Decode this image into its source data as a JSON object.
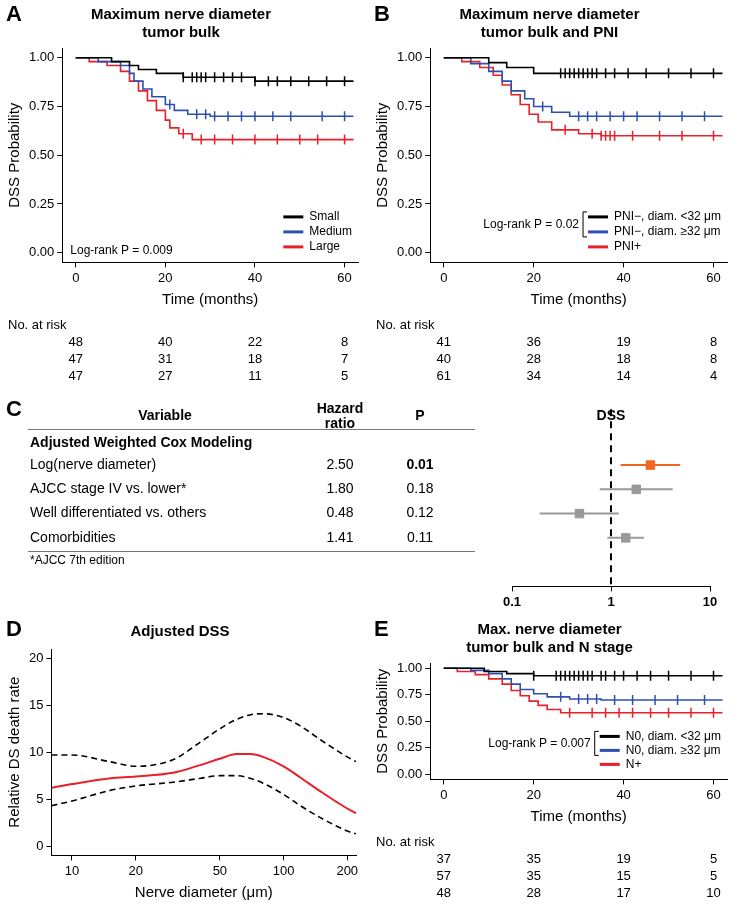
{
  "chart_data": [
    {
      "type": "step",
      "panel": "A",
      "title": [
        "Maximum nerve diameter",
        "tumor bulk"
      ],
      "xlabel": "Time (months)",
      "ylabel": "DSS Probability",
      "xlim": [
        -3,
        63
      ],
      "xticks": [
        0,
        20,
        40,
        60
      ],
      "ylim": [
        -0.05,
        1.05
      ],
      "yticks": [
        {
          "value": 0,
          "label": "0.00"
        },
        {
          "value": 0.25,
          "label": "0.25"
        },
        {
          "value": 0.5,
          "label": "0.50"
        },
        {
          "value": 0.75,
          "label": "0.75"
        },
        {
          "value": 1,
          "label": "1.00"
        }
      ],
      "grid": false,
      "legend": "lower right",
      "annotation": "Log-rank P = 0.009",
      "series": [
        {
          "name": "Small",
          "color": "#000000",
          "x": [
            0,
            8,
            12,
            14,
            18,
            24,
            40,
            62
          ],
          "values": [
            1,
            0.98,
            0.96,
            0.94,
            0.92,
            0.9,
            0.88,
            0.88
          ],
          "censored": [
            24,
            26,
            27,
            28,
            29,
            31,
            33,
            35,
            37,
            40,
            43,
            45,
            48,
            52,
            56,
            60
          ]
        },
        {
          "name": "Medium",
          "color": "#2f4fb0",
          "x": [
            0,
            5,
            10,
            12,
            13,
            15,
            17,
            20,
            22,
            25,
            30,
            62
          ],
          "values": [
            1,
            0.98,
            0.96,
            0.92,
            0.88,
            0.84,
            0.8,
            0.76,
            0.73,
            0.71,
            0.7,
            0.7
          ],
          "censored": [
            21,
            27,
            29,
            31,
            34,
            37,
            40,
            44,
            48,
            55,
            60
          ]
        },
        {
          "name": "Large",
          "color": "#e8202a",
          "x": [
            0,
            3,
            7,
            10,
            12,
            14,
            16,
            18,
            20,
            21,
            23,
            26,
            62
          ],
          "values": [
            1,
            0.98,
            0.96,
            0.93,
            0.88,
            0.83,
            0.78,
            0.73,
            0.68,
            0.64,
            0.61,
            0.58,
            0.58
          ],
          "censored": [
            24,
            28,
            31,
            35,
            40,
            45,
            50,
            54,
            60
          ]
        }
      ],
      "risk_table": {
        "title": "No. at risk",
        "times": [
          0,
          20,
          40,
          60
        ],
        "rows": [
          [
            48,
            40,
            22,
            8
          ],
          [
            47,
            31,
            18,
            7
          ],
          [
            47,
            27,
            11,
            5
          ]
        ]
      }
    },
    {
      "type": "step",
      "panel": "B",
      "title": [
        "Maximum nerve diameter",
        "tumor bulk and PNI"
      ],
      "xlabel": "Time (months)",
      "ylabel": "DSS Probability",
      "xlim": [
        -3,
        63
      ],
      "xticks": [
        0,
        20,
        40,
        60
      ],
      "ylim": [
        -0.05,
        1.05
      ],
      "yticks": [
        {
          "value": 0,
          "label": "0.00"
        },
        {
          "value": 0.25,
          "label": "0.25"
        },
        {
          "value": 0.5,
          "label": "0.50"
        },
        {
          "value": 0.75,
          "label": "0.75"
        },
        {
          "value": 1,
          "label": "1.00"
        }
      ],
      "grid": false,
      "legend": "lower right",
      "annotation": "Log-rank P = 0.02",
      "series": [
        {
          "name": "PNI−, diam. <32 μm",
          "color": "#000000",
          "x": [
            0,
            10,
            14,
            20,
            62
          ],
          "values": [
            1,
            0.975,
            0.95,
            0.92,
            0.92
          ],
          "censored": [
            26,
            27,
            28,
            29,
            30,
            31,
            32,
            33,
            34,
            36,
            38,
            41,
            45,
            50,
            55,
            60
          ]
        },
        {
          "name": "PNI−, diam. ≥32 μm",
          "color": "#2f4fb0",
          "x": [
            0,
            6,
            10,
            13,
            15,
            18,
            20,
            24,
            28,
            62
          ],
          "values": [
            1,
            0.97,
            0.93,
            0.88,
            0.83,
            0.79,
            0.75,
            0.72,
            0.7,
            0.7
          ],
          "censored": [
            22,
            30,
            32,
            34,
            37,
            40,
            43,
            48,
            53,
            58
          ]
        },
        {
          "name": "PNI+",
          "color": "#e8202a",
          "x": [
            0,
            4,
            8,
            11,
            13,
            15,
            17,
            19,
            21,
            24,
            30,
            35,
            62
          ],
          "values": [
            1,
            0.98,
            0.95,
            0.91,
            0.86,
            0.81,
            0.76,
            0.71,
            0.67,
            0.63,
            0.61,
            0.6,
            0.6
          ],
          "censored": [
            27,
            33,
            35,
            36,
            37,
            38,
            42,
            48,
            53,
            60
          ]
        }
      ],
      "risk_table": {
        "title": "No. at risk",
        "times": [
          0,
          20,
          40,
          60
        ],
        "rows": [
          [
            41,
            36,
            19,
            8
          ],
          [
            40,
            28,
            18,
            8
          ],
          [
            61,
            34,
            14,
            4
          ]
        ]
      }
    },
    {
      "type": "forest",
      "panel": "C",
      "columns": [
        "Variable",
        "Hazard ratio",
        "P",
        "DSS"
      ],
      "subheader": "Adjusted Weighted Cox Modeling",
      "categories": [
        "Log(nerve diameter)",
        "AJCC stage IV vs. lower*",
        "Well differentiated vs. others",
        "Comorbidities"
      ],
      "values": [
        2.5,
        1.8,
        0.48,
        1.41
      ],
      "value_labels": [
        "2.50",
        "1.80",
        "0.48",
        "1.41"
      ],
      "ci_low": [
        1.25,
        0.77,
        0.19,
        0.92
      ],
      "ci_high": [
        5.0,
        4.2,
        1.2,
        2.15
      ],
      "p_values": [
        0.01,
        0.18,
        0.12,
        0.11
      ],
      "colors": [
        "#f26522",
        "#999999",
        "#999999",
        "#999999"
      ],
      "log": "x",
      "xlim": [
        0.1,
        10
      ],
      "xticks": [
        0.1,
        1,
        10
      ],
      "reference_line": 1,
      "grid": false,
      "footnote": "*AJCC 7th edition"
    },
    {
      "type": "line",
      "panel": "D",
      "title": "Adjusted DSS",
      "xlabel": "Nerve diameter (μm)",
      "ylabel": "Relative DS death rate",
      "log": "x",
      "xlim": [
        8,
        220
      ],
      "xticks": [
        10,
        20,
        50,
        100,
        200
      ],
      "ylim": [
        -1,
        21
      ],
      "yticks": [
        0,
        5,
        10,
        15,
        20
      ],
      "grid": false,
      "x": [
        8,
        10,
        15,
        20,
        30,
        40,
        50,
        60,
        70,
        80,
        100,
        120,
        150,
        200,
        220
      ],
      "series": [
        {
          "color": "#e8202a",
          "line_style": "solid",
          "values": [
            6.2,
            6.6,
            7.2,
            7.4,
            7.8,
            8.6,
            9.3,
            9.8,
            9.8,
            9.5,
            8.5,
            7.3,
            5.8,
            4.0,
            3.5
          ]
        },
        {
          "color": "#000000",
          "line_style": "dashed",
          "values": [
            9.7,
            9.7,
            9.0,
            8.5,
            9.2,
            11.0,
            12.5,
            13.5,
            14.0,
            14.1,
            13.7,
            12.8,
            11.3,
            9.5,
            9.0
          ]
        },
        {
          "color": "#000000",
          "line_style": "dashed",
          "values": [
            4.3,
            4.8,
            5.9,
            6.4,
            6.8,
            7.2,
            7.5,
            7.5,
            7.2,
            6.7,
            5.5,
            4.3,
            3.0,
            1.6,
            1.3
          ]
        }
      ]
    },
    {
      "type": "step",
      "panel": "E",
      "title": [
        "Max. nerve diameter",
        "tumor bulk and N stage"
      ],
      "xlabel": "Time (months)",
      "ylabel": "DSS Probability",
      "xlim": [
        -3,
        63
      ],
      "xticks": [
        0,
        20,
        40,
        60
      ],
      "ylim": [
        -0.05,
        1.05
      ],
      "yticks": [
        {
          "value": 0,
          "label": "0.00"
        },
        {
          "value": 0.25,
          "label": "0.25"
        },
        {
          "value": 0.5,
          "label": "0.50"
        },
        {
          "value": 0.75,
          "label": "0.75"
        },
        {
          "value": 1,
          "label": "1.00"
        }
      ],
      "grid": false,
      "legend": "lower right",
      "annotation": "Log-rank P = 0.007",
      "series": [
        {
          "name": "N0, diam. <32 μm",
          "color": "#000000",
          "x": [
            0,
            9,
            14,
            20,
            62
          ],
          "values": [
            1,
            0.97,
            0.95,
            0.93,
            0.93
          ],
          "censored": [
            20,
            25,
            26,
            27,
            28,
            29,
            30,
            31,
            32,
            33,
            35,
            36,
            38,
            40,
            43,
            46,
            50,
            55,
            60
          ]
        },
        {
          "name": "N0, diam. ≥32 μm",
          "color": "#2f4fb0",
          "x": [
            0,
            6,
            10,
            13,
            15,
            17,
            20,
            23,
            28,
            35,
            62
          ],
          "values": [
            1,
            0.98,
            0.95,
            0.9,
            0.85,
            0.8,
            0.76,
            0.73,
            0.71,
            0.7,
            0.7
          ],
          "censored": [
            26,
            30,
            32,
            34,
            38,
            42,
            47,
            52,
            58
          ]
        },
        {
          "name": "N+",
          "color": "#e8202a",
          "x": [
            0,
            3,
            7,
            10,
            13,
            15,
            17,
            19,
            21,
            23,
            26,
            62
          ],
          "values": [
            1,
            0.97,
            0.94,
            0.9,
            0.85,
            0.79,
            0.74,
            0.69,
            0.65,
            0.61,
            0.58,
            0.58
          ],
          "censored": [
            28,
            33,
            36,
            39,
            42,
            46,
            50,
            55,
            60
          ]
        }
      ],
      "risk_table": {
        "title": "No. at risk",
        "times": [
          0,
          20,
          40,
          60
        ],
        "rows": [
          [
            37,
            35,
            19,
            5
          ],
          [
            57,
            35,
            15,
            5
          ],
          [
            48,
            28,
            17,
            10
          ]
        ]
      }
    }
  ]
}
